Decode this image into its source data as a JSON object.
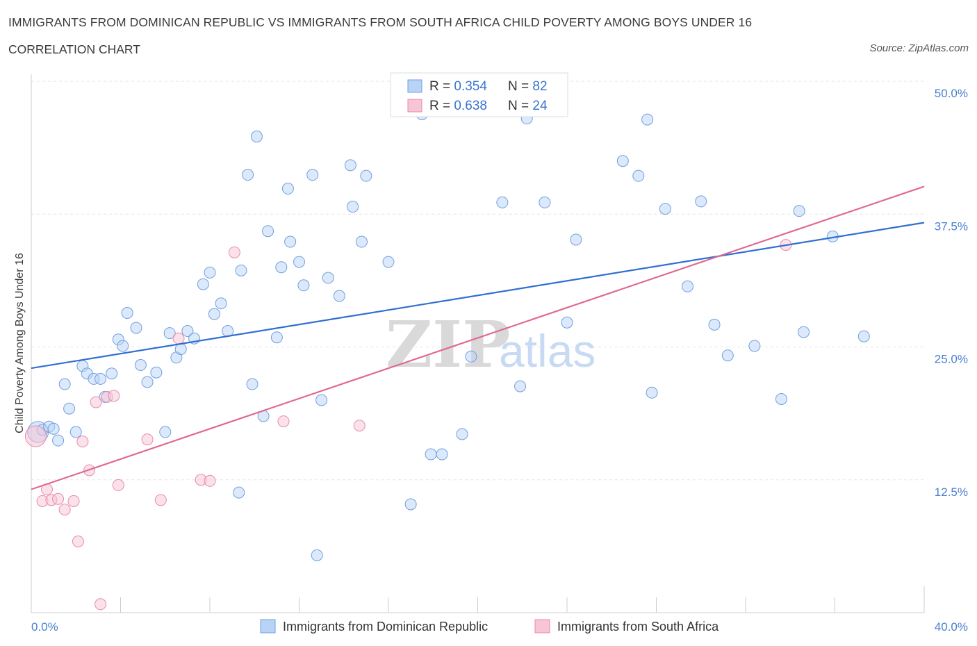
{
  "chart_data": {
    "type": "scatter",
    "title": "IMMIGRANTS FROM DOMINICAN REPUBLIC VS IMMIGRANTS FROM SOUTH AFRICA CHILD POVERTY AMONG BOYS UNDER 16",
    "subtitle": "CORRELATION CHART",
    "source": "Source: ZipAtlas.com",
    "ylabel": "Child Poverty Among Boys Under 16",
    "xlabel": "",
    "xlim": [
      0,
      40
    ],
    "ylim": [
      0,
      50
    ],
    "x_tick_labels": [
      "0.0%",
      "40.0%"
    ],
    "y_ticks": [
      12.5,
      25.0,
      37.5,
      50.0
    ],
    "y_tick_labels": [
      "12.5%",
      "25.0%",
      "37.5%",
      "50.0%"
    ],
    "grid": true,
    "watermark": "ZIPatlas",
    "legend": [
      {
        "name": "Immigrants from Dominican Republic",
        "color": "#6f9fe0",
        "fill": "#b9d3f7"
      },
      {
        "name": "Immigrants from South Africa",
        "color": "#e88aa8",
        "fill": "#f8c5d5"
      }
    ],
    "stats": [
      {
        "r_label": "R = ",
        "r": "0.354",
        "n_label": "N = ",
        "n": "82",
        "color": "#3a74d0"
      },
      {
        "r_label": "R = ",
        "r": "0.638",
        "n_label": "N = ",
        "n": "24",
        "color": "#3a74d0"
      }
    ],
    "series": [
      {
        "name": "Immigrants from Dominican Republic",
        "color": "#6f9fe0",
        "fill": "#b9d3f7",
        "trend": [
          [
            0,
            23.0
          ],
          [
            40,
            36.7
          ]
        ],
        "trend_color": "#2f6fd0",
        "points": [
          [
            0.3,
            17.0
          ],
          [
            0.5,
            17.2
          ],
          [
            0.8,
            17.5
          ],
          [
            1.0,
            17.3
          ],
          [
            1.2,
            16.2
          ],
          [
            1.5,
            21.5
          ],
          [
            1.7,
            19.2
          ],
          [
            2.0,
            17.0
          ],
          [
            2.3,
            23.2
          ],
          [
            2.5,
            22.5
          ],
          [
            2.8,
            22.0
          ],
          [
            3.1,
            22.0
          ],
          [
            3.3,
            20.3
          ],
          [
            3.6,
            22.5
          ],
          [
            3.9,
            25.7
          ],
          [
            4.1,
            25.1
          ],
          [
            4.3,
            28.2
          ],
          [
            4.7,
            26.8
          ],
          [
            4.9,
            23.3
          ],
          [
            5.2,
            21.7
          ],
          [
            5.6,
            22.6
          ],
          [
            6.0,
            17.0
          ],
          [
            6.2,
            26.3
          ],
          [
            6.5,
            24.0
          ],
          [
            6.7,
            24.8
          ],
          [
            7.0,
            26.5
          ],
          [
            7.3,
            25.8
          ],
          [
            7.7,
            30.9
          ],
          [
            8.0,
            32.0
          ],
          [
            8.2,
            28.1
          ],
          [
            8.5,
            29.1
          ],
          [
            8.8,
            26.5
          ],
          [
            9.3,
            11.3
          ],
          [
            9.4,
            32.2
          ],
          [
            9.7,
            41.2
          ],
          [
            9.9,
            21.5
          ],
          [
            10.1,
            44.8
          ],
          [
            10.4,
            18.5
          ],
          [
            10.6,
            35.9
          ],
          [
            11.0,
            25.9
          ],
          [
            11.2,
            32.5
          ],
          [
            11.5,
            39.9
          ],
          [
            11.6,
            34.9
          ],
          [
            12.0,
            33.0
          ],
          [
            12.2,
            30.8
          ],
          [
            12.6,
            41.2
          ],
          [
            12.8,
            5.4
          ],
          [
            13.0,
            20.0
          ],
          [
            13.3,
            31.5
          ],
          [
            13.8,
            29.8
          ],
          [
            14.3,
            42.1
          ],
          [
            14.4,
            38.2
          ],
          [
            14.8,
            34.9
          ],
          [
            15.0,
            41.1
          ],
          [
            16.0,
            33.0
          ],
          [
            17.0,
            10.2
          ],
          [
            17.5,
            46.9
          ],
          [
            17.9,
            14.9
          ],
          [
            18.4,
            14.9
          ],
          [
            19.3,
            16.8
          ],
          [
            19.7,
            24.1
          ],
          [
            21.1,
            38.6
          ],
          [
            21.9,
            21.3
          ],
          [
            22.2,
            46.5
          ],
          [
            23.0,
            38.6
          ],
          [
            24.0,
            27.3
          ],
          [
            24.4,
            35.1
          ],
          [
            26.5,
            42.5
          ],
          [
            27.2,
            41.1
          ],
          [
            27.6,
            46.4
          ],
          [
            27.8,
            20.7
          ],
          [
            28.4,
            38.0
          ],
          [
            29.4,
            30.7
          ],
          [
            30.0,
            38.7
          ],
          [
            30.6,
            27.1
          ],
          [
            31.2,
            24.2
          ],
          [
            32.4,
            25.1
          ],
          [
            33.6,
            20.1
          ],
          [
            34.4,
            37.8
          ],
          [
            34.6,
            26.4
          ],
          [
            35.9,
            35.4
          ],
          [
            37.3,
            26.0
          ]
        ]
      },
      {
        "name": "Immigrants from South Africa",
        "color": "#e88aa8",
        "fill": "#f8c5d5",
        "trend": [
          [
            0,
            11.6
          ],
          [
            40,
            40.1
          ]
        ],
        "trend_color": "#e06a92",
        "points": [
          [
            0.2,
            16.6
          ],
          [
            0.5,
            10.5
          ],
          [
            0.7,
            11.6
          ],
          [
            0.9,
            10.6
          ],
          [
            1.2,
            10.7
          ],
          [
            1.5,
            9.7
          ],
          [
            1.9,
            10.5
          ],
          [
            2.1,
            6.7
          ],
          [
            2.3,
            16.1
          ],
          [
            2.6,
            13.4
          ],
          [
            2.9,
            19.8
          ],
          [
            3.1,
            0.8
          ],
          [
            3.4,
            20.3
          ],
          [
            3.7,
            20.4
          ],
          [
            3.9,
            12.0
          ],
          [
            5.2,
            16.3
          ],
          [
            5.8,
            10.6
          ],
          [
            6.6,
            25.8
          ],
          [
            7.6,
            12.5
          ],
          [
            8.0,
            12.4
          ],
          [
            9.1,
            33.9
          ],
          [
            11.3,
            18.0
          ],
          [
            14.7,
            17.6
          ],
          [
            33.8,
            34.6
          ]
        ]
      }
    ]
  }
}
